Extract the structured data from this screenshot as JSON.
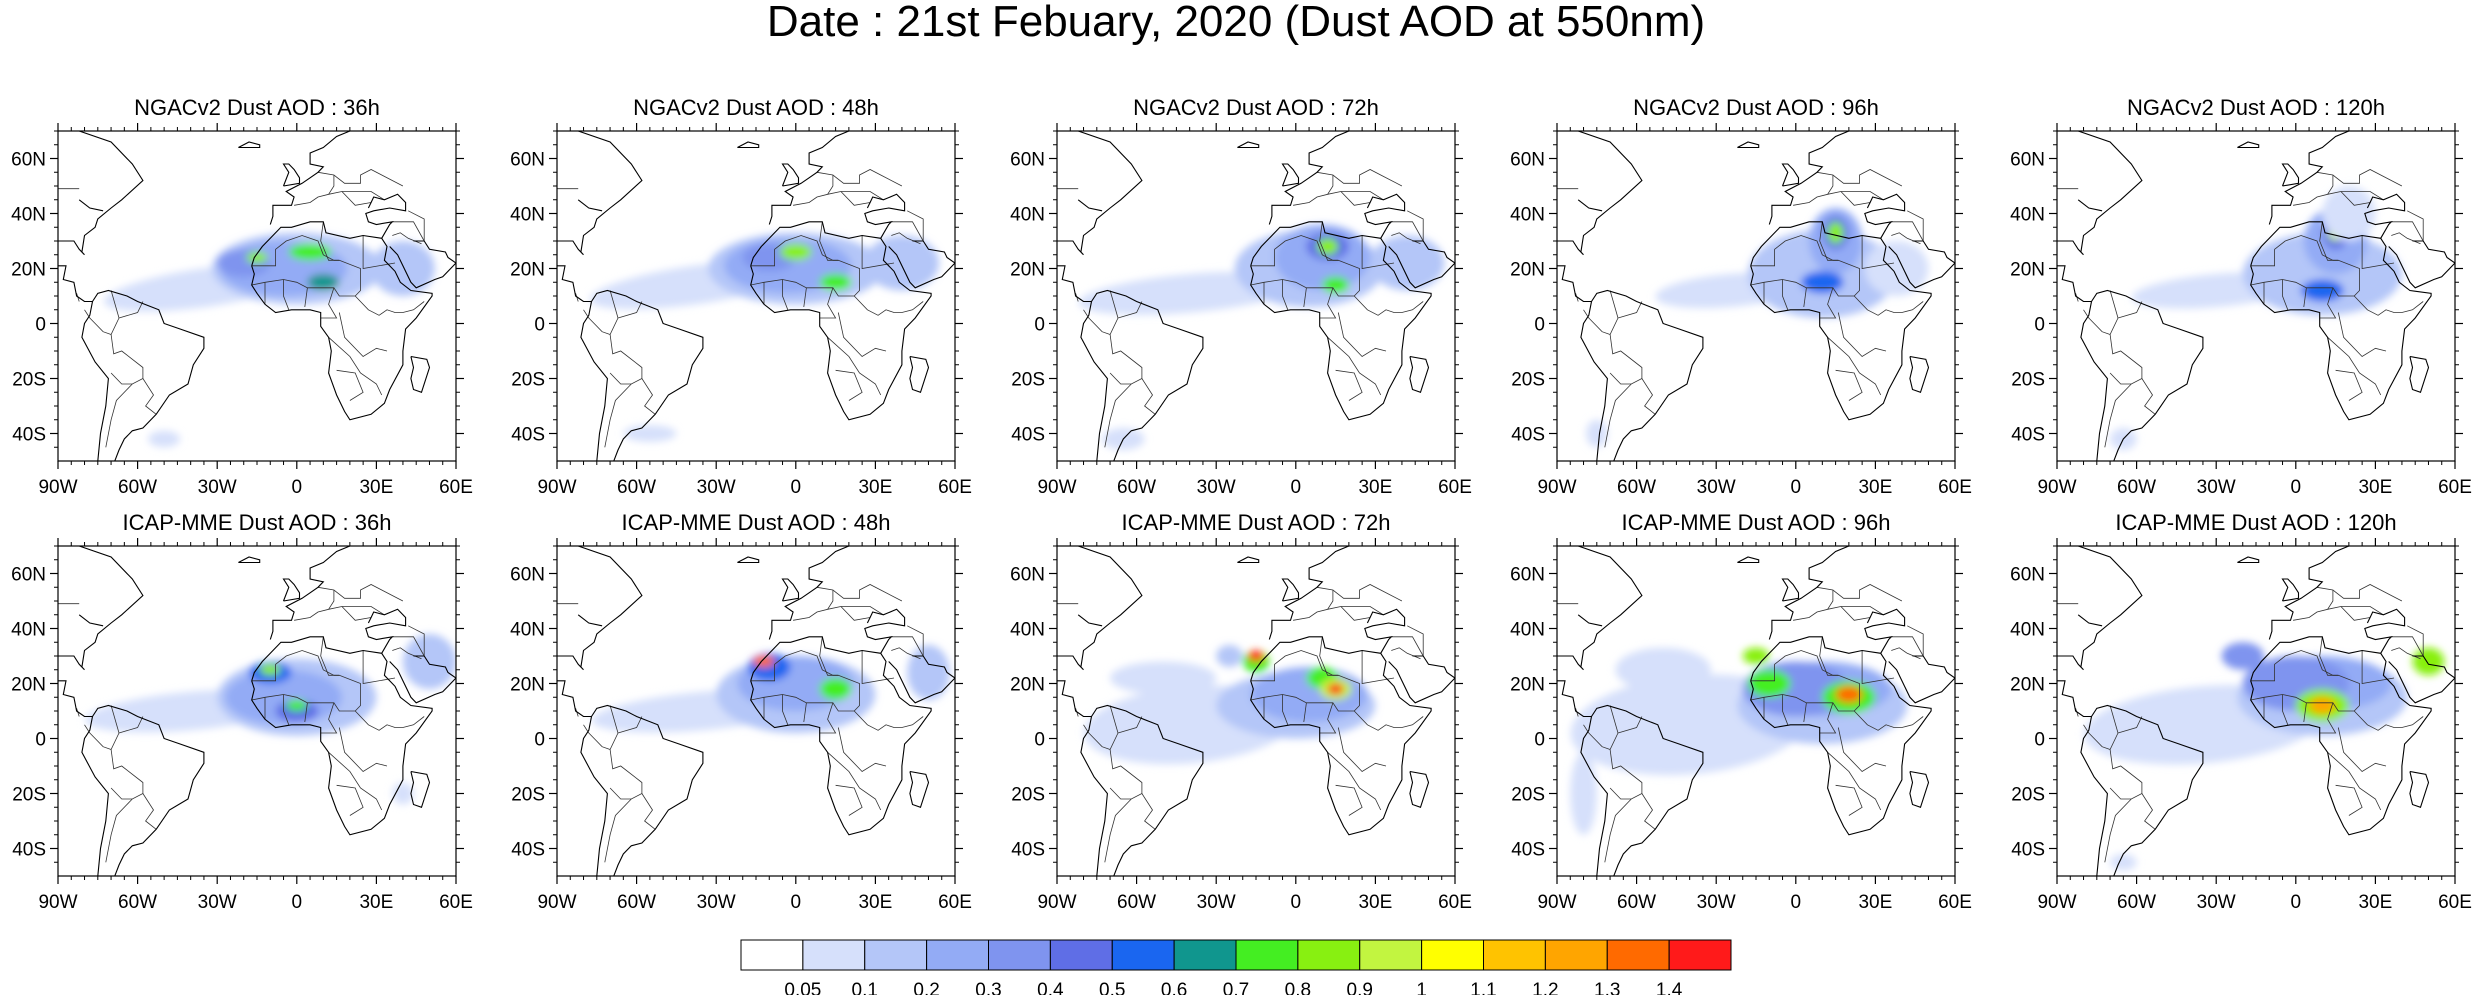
{
  "title": "Date : 21st Febuary, 2020 (Dust AOD at 550nm)",
  "axes": {
    "lon_range": [
      -90,
      60
    ],
    "lat_range": [
      -50,
      70
    ],
    "lon_ticks": [
      "90W",
      "60W",
      "30W",
      "0",
      "30E",
      "60E"
    ],
    "lat_ticks": [
      "60N",
      "40N",
      "20N",
      "0",
      "20S",
      "40S"
    ]
  },
  "panels": [
    {
      "title": "NGACv2 Dust AOD : 36h",
      "model": "NGACv2",
      "lead": "36h"
    },
    {
      "title": "NGACv2 Dust AOD : 48h",
      "model": "NGACv2",
      "lead": "48h"
    },
    {
      "title": "NGACv2 Dust AOD : 72h",
      "model": "NGACv2",
      "lead": "72h"
    },
    {
      "title": "NGACv2 Dust AOD : 96h",
      "model": "NGACv2",
      "lead": "96h"
    },
    {
      "title": "NGACv2 Dust AOD : 120h",
      "model": "NGACv2",
      "lead": "120h"
    },
    {
      "title": "ICAP-MME Dust AOD : 36h",
      "model": "ICAP-MME",
      "lead": "36h"
    },
    {
      "title": "ICAP-MME Dust AOD : 48h",
      "model": "ICAP-MME",
      "lead": "48h"
    },
    {
      "title": "ICAP-MME Dust AOD : 72h",
      "model": "ICAP-MME",
      "lead": "72h"
    },
    {
      "title": "ICAP-MME Dust AOD : 96h",
      "model": "ICAP-MME",
      "lead": "96h"
    },
    {
      "title": "ICAP-MME Dust AOD : 120h",
      "model": "ICAP-MME",
      "lead": "120h"
    }
  ],
  "colorbar": {
    "labels": [
      "0.05",
      "0.1",
      "0.2",
      "0.3",
      "0.4",
      "0.5",
      "0.6",
      "0.7",
      "0.8",
      "0.9",
      "1",
      "1.1",
      "1.2",
      "1.3",
      "1.4"
    ],
    "colors": [
      "#ffffff",
      "#d6e0fb",
      "#b4c6f8",
      "#93abf5",
      "#7f94ef",
      "#5f6ee6",
      "#1a66f0",
      "#10968e",
      "#44ee22",
      "#88f011",
      "#c2f540",
      "#ffff00",
      "#ffc300",
      "#ffa500",
      "#ff6a00",
      "#ff1a1a"
    ]
  }
}
